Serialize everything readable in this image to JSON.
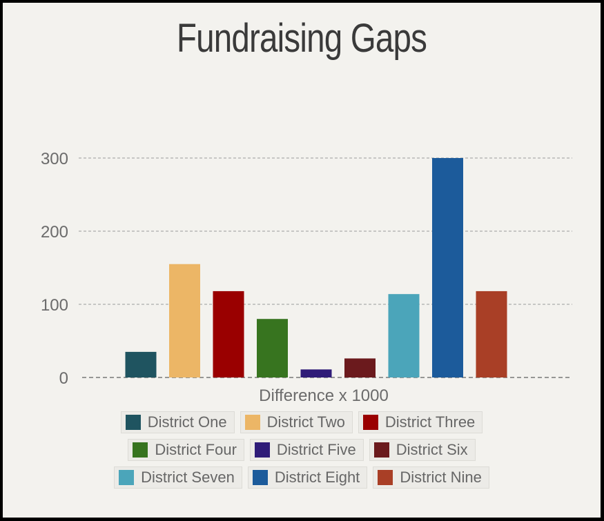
{
  "chart_data": {
    "type": "bar",
    "title": "Fundraising Gaps",
    "xlabel": "Difference x 1000",
    "ylabel": "",
    "ylim": [
      0,
      300
    ],
    "yticks": [
      0,
      100,
      200,
      300
    ],
    "grid": true,
    "legend_position": "bottom",
    "categories": [
      "District One",
      "District Two",
      "District Three",
      "District Four",
      "District Five",
      "District Six",
      "District Seven",
      "District Eight",
      "District Nine"
    ],
    "values": [
      35,
      155,
      118,
      80,
      11,
      26,
      114,
      300,
      118
    ],
    "colors": [
      "#1f5460",
      "#ecb666",
      "#9a0000",
      "#37741f",
      "#2f1c78",
      "#6b1a1d",
      "#4ba5ba",
      "#1c5b9b",
      "#a93f26"
    ]
  }
}
